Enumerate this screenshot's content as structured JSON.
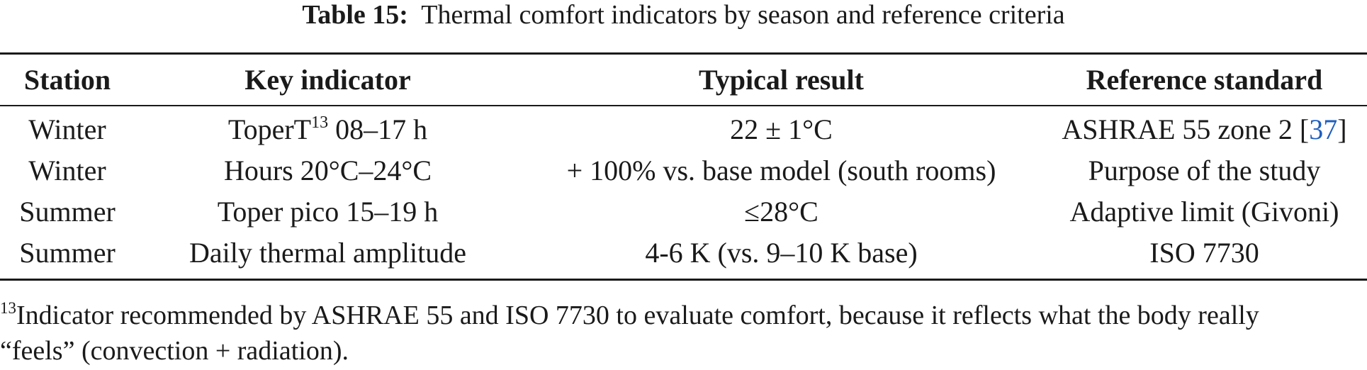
{
  "caption": {
    "label": "Table 15:",
    "text": "Thermal comfort indicators by season and reference criteria"
  },
  "table": {
    "headers": [
      "Station",
      "Key indicator",
      "Typical result",
      "Reference standard"
    ],
    "rows": [
      {
        "station": "Winter",
        "indicator": "ToperT",
        "indicator_sup": "13",
        "indicator_suffix": " 08–17 h",
        "result": "22 ± 1°C",
        "standard": "ASHRAE 55 zone 2 [",
        "standard_ref": "37",
        "standard_suffix": "]"
      },
      {
        "station": "Winter",
        "indicator": "Hours 20°C–24°C",
        "result": "+ 100% vs. base model (south rooms)",
        "standard": "Purpose of the study"
      },
      {
        "station": "Summer",
        "indicator": "Toper pico 15–19 h",
        "result": "≤28°C",
        "standard": "Adaptive limit (Givoni)"
      },
      {
        "station": "Summer",
        "indicator": "Daily thermal amplitude",
        "result": "4-6 K (vs. 9–10 K base)",
        "standard": "ISO 7730"
      }
    ]
  },
  "footnote": {
    "mark": "13",
    "line1": "Indicator recommended by ASHRAE 55 and ISO 7730 to evaluate comfort, because it reflects what the body really",
    "line2": "“feels” (convection + radiation)."
  },
  "colors": {
    "text": "#1a1a1a",
    "link": "#1f5fbf"
  }
}
